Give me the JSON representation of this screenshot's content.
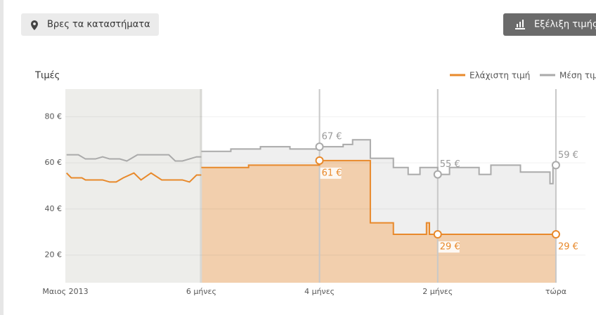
{
  "buttons": {
    "stores": "Βρες τα καταστήματα",
    "evolution": "Εξέλιξη τιμής"
  },
  "chart_data": {
    "type": "step-area",
    "title": "Τιμές",
    "xlim": [
      -8.3,
      0.5
    ],
    "ylim": [
      8,
      92
    ],
    "xticks": [
      {
        "value": -8.3,
        "label": "Μαιος 2013"
      },
      {
        "value": -6,
        "label": "6 μήνες"
      },
      {
        "value": -4,
        "label": "4 μήνες"
      },
      {
        "value": -2,
        "label": "2 μήνες"
      },
      {
        "value": 0,
        "label": "τώρα"
      }
    ],
    "yticks": [
      {
        "value": 20,
        "label": "20 €"
      },
      {
        "value": 40,
        "label": "40 €"
      },
      {
        "value": 60,
        "label": "60 €"
      },
      {
        "value": 80,
        "label": "80 €"
      }
    ],
    "grid": true,
    "series": [
      {
        "name": "Ελάχιστη τιμή",
        "color": "#e8892b",
        "fill": "#f2cfad",
        "x": [
          -8.28,
          -8.2,
          -8.02,
          -7.96,
          -7.67,
          -7.55,
          -7.44,
          -7.32,
          -7.14,
          -7.02,
          -6.85,
          -6.67,
          -6.32,
          -6.2,
          -6.08,
          -6.0,
          null,
          -6.0,
          -5.2,
          -5.2,
          -4.0,
          -4.0,
          -3.14,
          -3.14,
          -2.75,
          -2.75,
          -2.19,
          -2.19,
          -2.14,
          -2.14,
          0
        ],
        "values": [
          55.6,
          53.5,
          53.5,
          52.6,
          52.6,
          51.7,
          51.7,
          53.5,
          55.6,
          52.6,
          55.6,
          52.6,
          52.6,
          51.7,
          54.7,
          54.7,
          null,
          58,
          58,
          59,
          59,
          61,
          61,
          34,
          34,
          29,
          29,
          34,
          34,
          29,
          29
        ],
        "points": [
          {
            "x": -4,
            "value": 61,
            "label": "61 €"
          },
          {
            "x": -2,
            "value": 29,
            "label": "29 €"
          },
          {
            "x": 0,
            "value": 29,
            "label": "29 €"
          }
        ]
      },
      {
        "name": "Μέση τιμή",
        "color": "#aaaaaa",
        "fill": "#efefef",
        "x": [
          -8.28,
          -8.08,
          -7.96,
          -7.79,
          -7.67,
          -7.55,
          -7.38,
          -7.26,
          -7.08,
          -6.55,
          -6.44,
          -6.32,
          -6.08,
          -6.0,
          null,
          -6.0,
          -5.5,
          -5.5,
          -5.0,
          -5.0,
          -4.5,
          -4.5,
          -4.0,
          -4.0,
          -3.6,
          -3.6,
          -3.44,
          -3.44,
          -3.14,
          -3.14,
          -2.75,
          -2.75,
          -2.5,
          -2.5,
          -2.3,
          -2.3,
          -2.0,
          -2.0,
          -1.8,
          -1.8,
          -1.3,
          -1.3,
          -1.1,
          -1.1,
          -0.6,
          -0.6,
          -0.1,
          -0.1,
          -0.05,
          -0.05,
          0
        ],
        "values": [
          63.5,
          63.5,
          61.7,
          61.7,
          62.6,
          61.7,
          61.7,
          60.8,
          63.5,
          63.5,
          60.8,
          60.8,
          62.6,
          62.6,
          null,
          65,
          65,
          66,
          66,
          67,
          67,
          66,
          66,
          67,
          67,
          68,
          68,
          70,
          70,
          62,
          62,
          58,
          58,
          55,
          55,
          58,
          58,
          55,
          55,
          58,
          58,
          55,
          55,
          59,
          59,
          56,
          56,
          51,
          51,
          59,
          59
        ],
        "points": [
          {
            "x": -4,
            "value": 67,
            "label": "67 €"
          },
          {
            "x": -2,
            "value": 55,
            "label": "55 €"
          },
          {
            "x": 0,
            "value": 59,
            "label": "59 €"
          }
        ]
      }
    ]
  }
}
